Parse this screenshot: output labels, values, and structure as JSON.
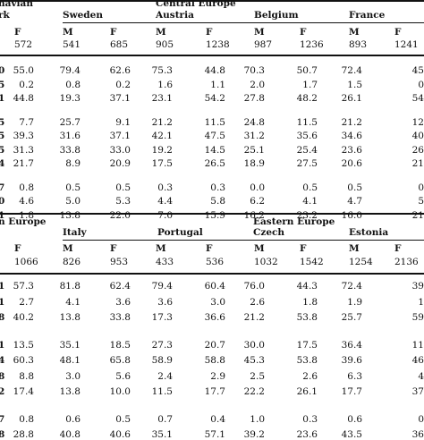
{
  "top": {
    "regions": [
      {
        "label": "navian",
        "col": 0
      },
      {
        "label": "Central Europe",
        "col": 2
      }
    ],
    "countries": [
      "rk",
      "Sweden",
      "Austria",
      "Belgium",
      "France"
    ],
    "sex_row": [
      "F",
      "M",
      "F",
      "M",
      "F",
      "M",
      "F",
      "M",
      "F"
    ],
    "n_row": [
      "572",
      "541",
      "685",
      "905",
      "1238",
      "987",
      "1236",
      "893",
      "1241"
    ],
    "row_labels": [
      "0",
      "5",
      "1",
      "5",
      "5",
      "5",
      "4",
      "7",
      "0",
      "1"
    ],
    "groups": [
      [
        [
          "55.0",
          "79.4",
          "62.6",
          "75.3",
          "44.8",
          "70.3",
          "50.7",
          "72.4",
          "45"
        ],
        [
          "0.2",
          "0.8",
          "0.2",
          "1.6",
          "1.1",
          "2.0",
          "1.7",
          "1.5",
          "0"
        ],
        [
          "44.8",
          "19.3",
          "37.1",
          "23.1",
          "54.2",
          "27.8",
          "48.2",
          "26.1",
          "54"
        ]
      ],
      [
        [
          "7.7",
          "25.7",
          "9.1",
          "21.2",
          "11.5",
          "24.8",
          "11.5",
          "21.2",
          "12"
        ],
        [
          "39.3",
          "31.6",
          "37.1",
          "42.1",
          "47.5",
          "31.2",
          "35.6",
          "34.6",
          "40"
        ],
        [
          "31.3",
          "33.8",
          "33.0",
          "19.2",
          "14.5",
          "25.1",
          "25.4",
          "23.6",
          "26"
        ],
        [
          "21.7",
          "8.9",
          "20.9",
          "17.5",
          "26.5",
          "18.9",
          "27.5",
          "20.6",
          "21"
        ]
      ],
      [
        [
          "0.8",
          "0.5",
          "0.5",
          "0.3",
          "0.3",
          "0.0",
          "0.5",
          "0.5",
          "0"
        ],
        [
          "4.6",
          "5.0",
          "5.3",
          "4.4",
          "5.8",
          "6.2",
          "4.1",
          "4.7",
          "5"
        ],
        [
          "1.8",
          "13.8",
          "22.0",
          "7.0",
          "15.9",
          "16.2",
          "23.2",
          "16.0",
          "21"
        ]
      ]
    ]
  },
  "bottom": {
    "regions": [
      {
        "label": "n Europe",
        "col": 0
      },
      {
        "label": "Eastern Europe",
        "col": 5
      }
    ],
    "countries": [
      "Italy",
      "Portugal",
      "Czech",
      "Estonia"
    ],
    "sex_row": [
      "F",
      "M",
      "F",
      "M",
      "F",
      "M",
      "F",
      "M",
      "F"
    ],
    "n_row": [
      "1066",
      "826",
      "953",
      "433",
      "536",
      "1032",
      "1542",
      "1254",
      "2136"
    ],
    "row_labels": [
      "1",
      "1",
      "8",
      "1",
      "4",
      "8",
      "2",
      "7",
      "8"
    ],
    "groups": [
      [
        [
          "57.3",
          "81.8",
          "62.4",
          "79.4",
          "60.4",
          "76.0",
          "44.3",
          "72.4",
          "39"
        ],
        [
          "2.7",
          "4.1",
          "3.6",
          "3.6",
          "3.0",
          "2.6",
          "1.8",
          "1.9",
          "1"
        ],
        [
          "40.2",
          "13.8",
          "33.8",
          "17.3",
          "36.6",
          "21.2",
          "53.8",
          "25.7",
          "59"
        ]
      ],
      [
        [
          "13.5",
          "35.1",
          "18.5",
          "27.3",
          "20.7",
          "30.0",
          "17.5",
          "36.4",
          "11"
        ],
        [
          "60.3",
          "48.1",
          "65.8",
          "58.9",
          "58.8",
          "45.3",
          "53.8",
          "39.6",
          "46"
        ],
        [
          "8.8",
          "3.0",
          "5.6",
          "2.4",
          "2.9",
          "2.5",
          "2.6",
          "6.3",
          "4"
        ],
        [
          "17.4",
          "13.8",
          "10.0",
          "11.5",
          "17.7",
          "22.2",
          "26.1",
          "17.7",
          "37"
        ]
      ],
      [
        [
          "0.8",
          "0.6",
          "0.5",
          "0.7",
          "0.4",
          "1.0",
          "0.3",
          "0.6",
          "0"
        ],
        [
          "28.8",
          "40.8",
          "40.6",
          "35.1",
          "57.1",
          "39.2",
          "23.6",
          "43.5",
          "36"
        ]
      ]
    ]
  }
}
